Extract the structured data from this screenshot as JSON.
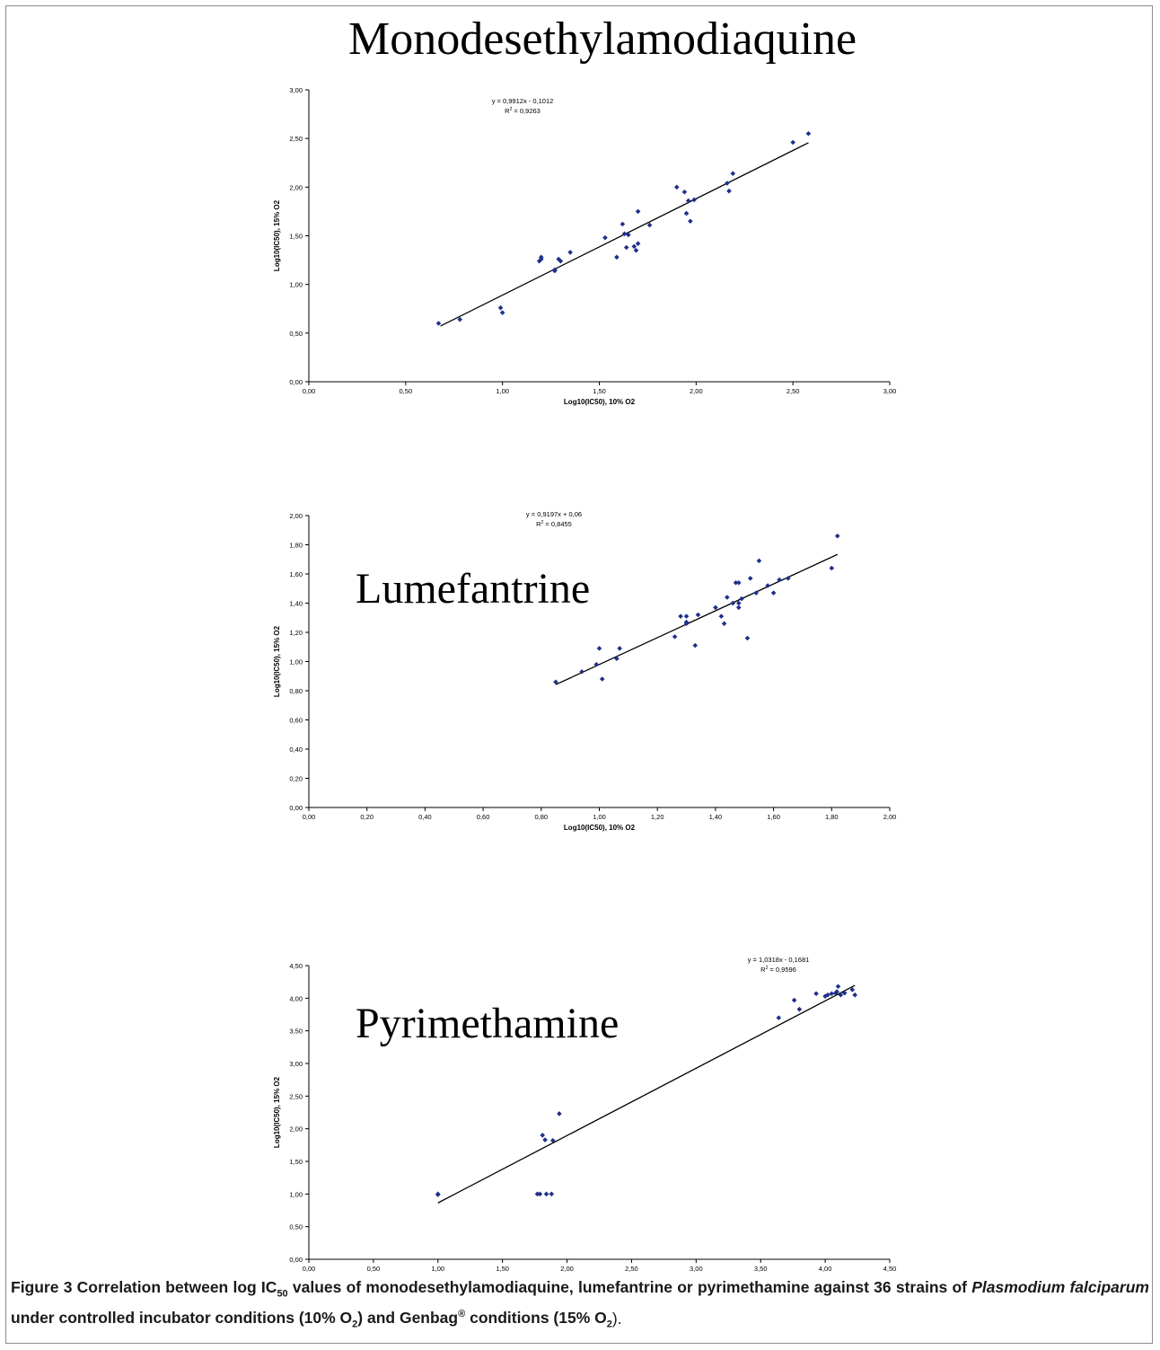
{
  "figure": {
    "caption_label": "Figure 3",
    "caption_body_1": " Correlation between log IC",
    "caption_sub_50": "50",
    "caption_body_2": " values of monodesethylamodiaquine, lumefantrine or pyrimethamine against 36 strains of ",
    "caption_species": "Plasmodium falciparum",
    "caption_body_3": " under controlled incubator conditions (10% O",
    "caption_sub_2a": "2",
    "caption_body_4": ") and Genbag",
    "caption_sup_reg": "®",
    "caption_body_5": " conditions (15% O",
    "caption_sub_2b": "2",
    "caption_body_6": ")."
  },
  "chart_data": [
    {
      "type": "scatter",
      "title": "Monodesethylamodiaquine",
      "xlabel": "Log10(IC50), 10% O2",
      "ylabel": "Log10(IC50), 15% O2",
      "xlim": [
        0,
        3
      ],
      "ylim": [
        0,
        3
      ],
      "xticks": [
        "0,00",
        "0,50",
        "1,00",
        "1,50",
        "2,00",
        "2,50",
        "3,00"
      ],
      "yticks": [
        "0,00",
        "0,50",
        "1,00",
        "1,50",
        "2,00",
        "2,50",
        "3,00"
      ],
      "marker_color": "#1f2f8a",
      "equation": "y = 0,9912x - 0,1012",
      "r2_prefix": "R",
      "r2_sup": "2",
      "r2_value": " = 0,9263",
      "trendline": {
        "slope": 0.9912,
        "intercept": -0.1012,
        "x_range": [
          0.68,
          2.58
        ]
      },
      "points": [
        [
          0.67,
          0.6
        ],
        [
          0.78,
          0.64
        ],
        [
          0.99,
          0.76
        ],
        [
          1.0,
          0.71
        ],
        [
          1.19,
          1.24
        ],
        [
          1.2,
          1.26
        ],
        [
          1.2,
          1.28
        ],
        [
          1.27,
          1.14
        ],
        [
          1.27,
          1.15
        ],
        [
          1.29,
          1.26
        ],
        [
          1.3,
          1.24
        ],
        [
          1.35,
          1.33
        ],
        [
          1.53,
          1.48
        ],
        [
          1.59,
          1.28
        ],
        [
          1.62,
          1.62
        ],
        [
          1.63,
          1.52
        ],
        [
          1.64,
          1.38
        ],
        [
          1.65,
          1.51
        ],
        [
          1.68,
          1.39
        ],
        [
          1.69,
          1.35
        ],
        [
          1.7,
          1.42
        ],
        [
          1.7,
          1.75
        ],
        [
          1.76,
          1.61
        ],
        [
          1.9,
          2.0
        ],
        [
          1.94,
          1.95
        ],
        [
          1.95,
          1.73
        ],
        [
          1.96,
          1.86
        ],
        [
          1.97,
          1.65
        ],
        [
          1.99,
          1.87
        ],
        [
          2.16,
          2.04
        ],
        [
          2.17,
          1.96
        ],
        [
          2.19,
          2.14
        ],
        [
          2.5,
          2.46
        ],
        [
          2.58,
          2.55
        ]
      ]
    },
    {
      "type": "scatter",
      "title": "Lumefantrine",
      "xlabel": "Log10(IC50), 10% O2",
      "ylabel": "Log10(IC50), 15% O2",
      "xlim": [
        0,
        2
      ],
      "ylim": [
        0,
        2
      ],
      "xticks": [
        "0,00",
        "0,20",
        "0,40",
        "0,60",
        "0,80",
        "1,00",
        "1,20",
        "1,40",
        "1,60",
        "1,80",
        "2,00"
      ],
      "yticks": [
        "0,00",
        "0,20",
        "0,40",
        "0,60",
        "0,80",
        "1,00",
        "1,20",
        "1,40",
        "1,60",
        "1,80",
        "2,00"
      ],
      "marker_color": "#1f2f8a",
      "equation": "y = 0,9197x + 0,06",
      "r2_prefix": "R",
      "r2_sup": "2",
      "r2_value": " = 0,8455",
      "trendline": {
        "slope": 0.9197,
        "intercept": 0.06,
        "x_range": [
          0.85,
          1.82
        ]
      },
      "points": [
        [
          0.85,
          0.86
        ],
        [
          0.94,
          0.93
        ],
        [
          0.99,
          0.98
        ],
        [
          1.0,
          1.09
        ],
        [
          1.01,
          0.88
        ],
        [
          1.06,
          1.02
        ],
        [
          1.07,
          1.09
        ],
        [
          1.26,
          1.17
        ],
        [
          1.28,
          1.31
        ],
        [
          1.3,
          1.31
        ],
        [
          1.3,
          1.26
        ],
        [
          1.3,
          1.27
        ],
        [
          1.33,
          1.11
        ],
        [
          1.34,
          1.32
        ],
        [
          1.4,
          1.37
        ],
        [
          1.42,
          1.31
        ],
        [
          1.43,
          1.26
        ],
        [
          1.44,
          1.44
        ],
        [
          1.46,
          1.4
        ],
        [
          1.47,
          1.54
        ],
        [
          1.48,
          1.37
        ],
        [
          1.48,
          1.54
        ],
        [
          1.48,
          1.4
        ],
        [
          1.49,
          1.43
        ],
        [
          1.51,
          1.16
        ],
        [
          1.52,
          1.57
        ],
        [
          1.54,
          1.47
        ],
        [
          1.55,
          1.69
        ],
        [
          1.58,
          1.52
        ],
        [
          1.6,
          1.47
        ],
        [
          1.62,
          1.56
        ],
        [
          1.65,
          1.57
        ],
        [
          1.8,
          1.64
        ],
        [
          1.82,
          1.86
        ]
      ]
    },
    {
      "type": "scatter",
      "title": "Pyrimethamine",
      "xlabel": "Log10(IC50), 10% O2",
      "ylabel": "Log10(IC50), 15% O2",
      "xlim": [
        0,
        4.5
      ],
      "ylim": [
        0,
        4.5
      ],
      "xticks": [
        "0,00",
        "0,50",
        "1,00",
        "1,50",
        "2,00",
        "2,50",
        "3,00",
        "3,50",
        "4,00",
        "4,50"
      ],
      "yticks": [
        "0,00",
        "0,50",
        "1,00",
        "1,50",
        "2,00",
        "2,50",
        "3,00",
        "3,50",
        "4,00",
        "4,50"
      ],
      "marker_color": "#1f2f8a",
      "equation": "y = 1,0318x - 0,1681",
      "r2_prefix": "R",
      "r2_sup": "2",
      "r2_value": " = 0,9596",
      "trendline": {
        "slope": 1.0318,
        "intercept": -0.1681,
        "x_range": [
          1.0,
          4.23
        ]
      },
      "points": [
        [
          1.0,
          1.0
        ],
        [
          1.0,
          0.99
        ],
        [
          1.77,
          1.0
        ],
        [
          1.79,
          1.0
        ],
        [
          1.84,
          1.0
        ],
        [
          1.88,
          1.0
        ],
        [
          1.81,
          1.9
        ],
        [
          1.83,
          1.83
        ],
        [
          1.89,
          1.82
        ],
        [
          1.94,
          2.23
        ],
        [
          3.64,
          3.7
        ],
        [
          3.76,
          3.97
        ],
        [
          3.8,
          3.83
        ],
        [
          3.93,
          4.07
        ],
        [
          4.0,
          4.03
        ],
        [
          4.02,
          4.05
        ],
        [
          4.05,
          4.07
        ],
        [
          4.08,
          4.08
        ],
        [
          4.09,
          4.1
        ],
        [
          4.1,
          4.18
        ],
        [
          4.12,
          4.05
        ],
        [
          4.15,
          4.08
        ],
        [
          4.21,
          4.13
        ],
        [
          4.23,
          4.05
        ]
      ]
    }
  ]
}
